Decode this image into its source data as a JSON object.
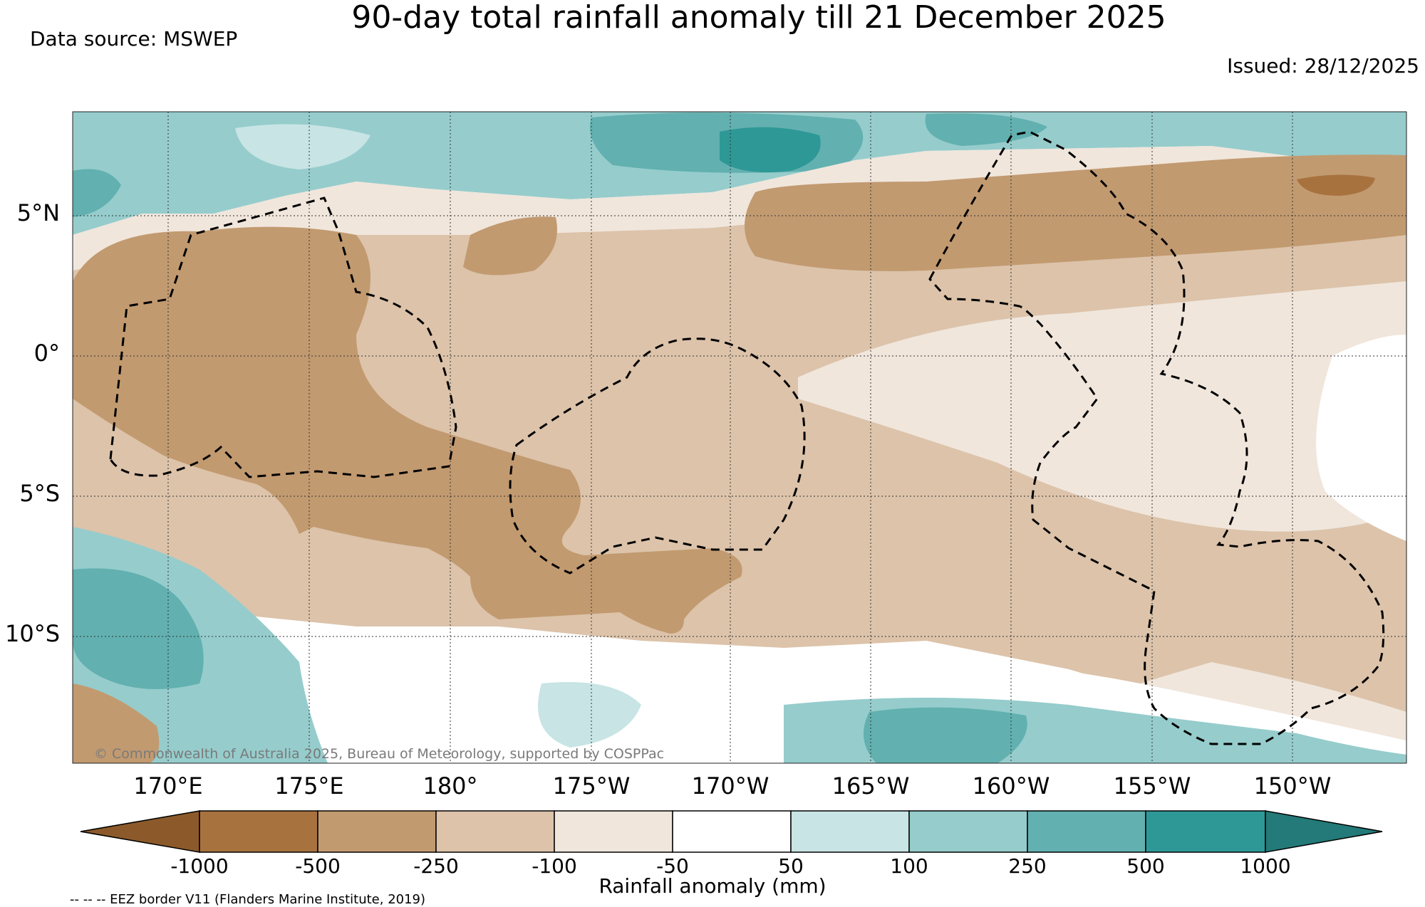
{
  "header": {
    "title": "90-day total rainfall anomaly till 21 December 2025",
    "data_source": "Data source: MSWEP",
    "issued": "Issued: 28/12/2025"
  },
  "map": {
    "lat_labels": [
      "5°N",
      "0°",
      "5°S",
      "10°S"
    ],
    "lon_labels": [
      "170°E",
      "175°E",
      "180°",
      "175°W",
      "170°W",
      "165°W",
      "160°W",
      "155°W",
      "150°W"
    ],
    "copyright": "© Commonwealth of Australia 2025, Bureau of Meteorology, supported by COSPPac",
    "eez_note": "-- -- -- EEZ border V11 (Flanders Marine Institute, 2019)"
  },
  "colorbar": {
    "label": "Rainfall anomaly (mm)",
    "ticks": [
      "-1000",
      "-500",
      "-250",
      "-100",
      "-50",
      "50",
      "100",
      "250",
      "500",
      "1000"
    ],
    "colors": {
      "lt_m1000": "#8c5a2a",
      "m1000_m500": "#a8723e",
      "m500_m250": "#c29a70",
      "m250_m100": "#dcc3aa",
      "m100_m50": "#f0e6dc",
      "m50_50": "#ffffff",
      "50_100": "#c8e4e4",
      "100_250": "#96cccc",
      "250_500": "#62b0b0",
      "500_1000": "#2e9896",
      "gt_1000": "#237a78"
    }
  }
}
